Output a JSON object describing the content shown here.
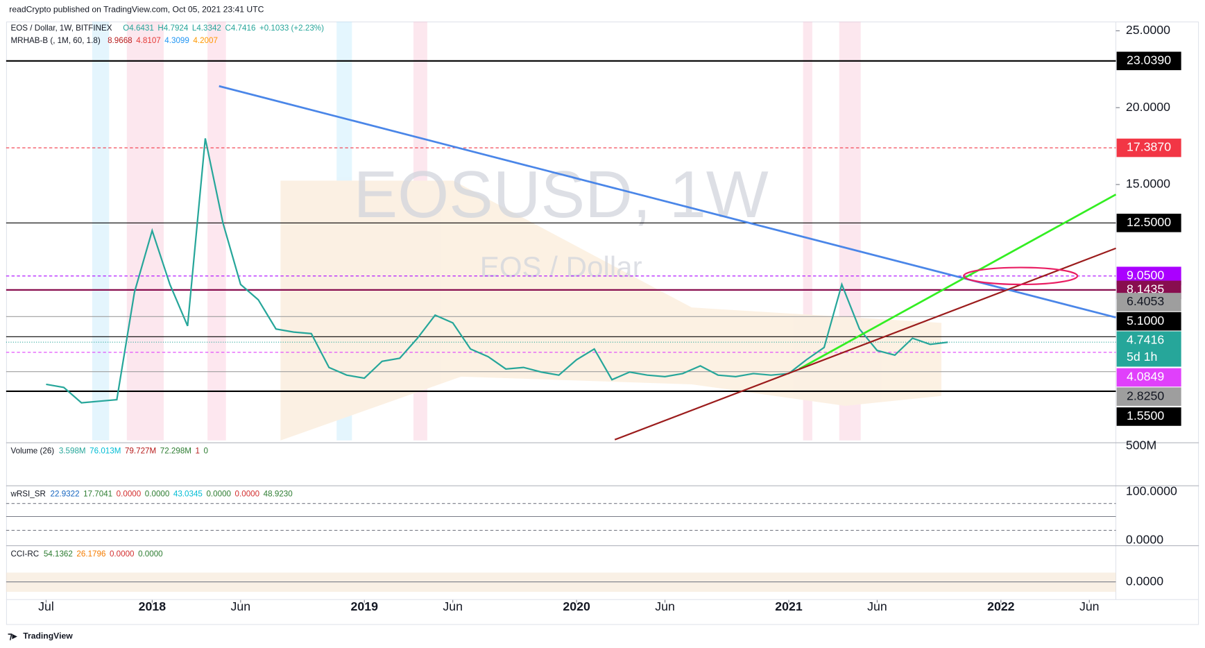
{
  "header": "readCrypto published on TradingView.com, Oct 05, 2021 23:41 UTC",
  "footer": "TradingView",
  "chart_data": {
    "type": "line",
    "title": "EOS / Dollar, 1W, BITFINEX",
    "legend_values": [
      "O4.6431",
      "H4.7924",
      "L4.3342",
      "C4.7416",
      "+0.1033 (+2.23%)"
    ],
    "watermark": "EOSUSD, 1W",
    "watermark_sub": "EOS / Dollar",
    "indicator": {
      "name": "MRHAB-B (, 1M, 60, 1.8)",
      "values": [
        "8.9668",
        "4.8107",
        "4.3099",
        "4.2007"
      ],
      "colors": [
        "#b71c1c",
        "#e53935",
        "#2196f3",
        "#ff9800"
      ]
    },
    "color": "#26a69a",
    "values": [
      2.0,
      1.8,
      0.8,
      0.9,
      1.0,
      8.0,
      12.0,
      8.5,
      5.8,
      18.0,
      12.5,
      8.5,
      7.5,
      5.6,
      5.4,
      5.3,
      3.1,
      2.6,
      2.4,
      3.5,
      3.7,
      5.0,
      6.5,
      6.0,
      4.3,
      3.8,
      3.0,
      3.1,
      2.8,
      2.6,
      3.6,
      4.3,
      2.3,
      2.8,
      2.6,
      2.5,
      2.7,
      3.2,
      2.6,
      2.5,
      2.7,
      2.6,
      2.7,
      3.6,
      4.4,
      8.5,
      5.6,
      4.2,
      3.9,
      5.0,
      4.6,
      4.74
    ],
    "xlim": [
      -2.26,
      60.5
    ],
    "xticks": [
      {
        "value": 0,
        "label": "Jul"
      },
      {
        "value": 6,
        "label": "2018"
      },
      {
        "value": 11,
        "label": "Jun"
      },
      {
        "value": 18,
        "label": "2019"
      },
      {
        "value": 23,
        "label": "Jun"
      },
      {
        "value": 30,
        "label": "2020"
      },
      {
        "value": 35,
        "label": "Jun"
      },
      {
        "value": 42,
        "label": "2021"
      },
      {
        "value": 47,
        "label": "Jun"
      },
      {
        "value": 54,
        "label": "2022"
      },
      {
        "value": 59,
        "label": "Jun"
      }
    ],
    "ylim": [
      -1.65,
      25.6
    ],
    "yticks": [
      {
        "value": 25,
        "label": "25.0000"
      },
      {
        "value": 20,
        "label": "20.0000"
      },
      {
        "value": 15,
        "label": "15.0000"
      }
    ],
    "levels": [
      {
        "value": 23.039,
        "label": "23.0390",
        "color": "#000000",
        "style": "solid"
      },
      {
        "value": 17.387,
        "label": "17.3870",
        "color": "#f23645",
        "style": "dashed"
      },
      {
        "value": 12.5,
        "label": "12.5000",
        "color": "#000000",
        "style": "solid"
      },
      {
        "value": 9.05,
        "label": "9.0500",
        "color": "#aa00ff",
        "style": "dashed"
      },
      {
        "value": 8.1435,
        "label": "8.1435",
        "color": "#880e4f",
        "style": "solid"
      },
      {
        "value": 6.4053,
        "label": "6.4053",
        "color": "#9e9e9e",
        "style": "solid"
      },
      {
        "value": 5.1,
        "label": "5.1000",
        "color": "#000000",
        "style": "solid"
      },
      {
        "value": 4.7416,
        "label": "4.7416",
        "sub": "5d 1h",
        "color": "#26a69a",
        "style": "dotted"
      },
      {
        "value": 4.0849,
        "label": "4.0849",
        "color": "#e040fb",
        "style": "dashed"
      },
      {
        "value": 2.825,
        "label": "2.8250",
        "color": "#9e9e9e",
        "style": "solid"
      },
      {
        "value": 1.55,
        "label": "1.5500",
        "color": "#000000",
        "style": "solid"
      }
    ],
    "panes": [
      {
        "title": "Volume (26)",
        "values": [
          "3.598M",
          "76.013M",
          "79.727M",
          "72.298M",
          "1",
          "0"
        ],
        "colors": [
          "#26a69a",
          "#00bcd4",
          "#b71c1c",
          "#2e7d32",
          "#b71c1c",
          "#2e7d32"
        ],
        "axis_labels": [
          "500M"
        ]
      },
      {
        "title": "wRSI_SR",
        "values": [
          "22.9322",
          "17.7041",
          "0.0000",
          "0.0000",
          "43.0345",
          "0.0000",
          "0.0000",
          "48.9230"
        ],
        "colors": [
          "#1565c0",
          "#2e7d32",
          "#d32f2f",
          "#2e7d32",
          "#00bcd4",
          "#2e7d32",
          "#d32f2f",
          "#2e7d32"
        ],
        "axis_labels": [
          "100.0000",
          "0.0000"
        ]
      },
      {
        "title": "CCI-RC",
        "values": [
          "54.1362",
          "26.1796",
          "0.0000",
          "0.0000"
        ],
        "colors": [
          "#2e7d32",
          "#f57c00",
          "#d32f2f",
          "#2e7d32"
        ],
        "axis_labels": [
          "0.0000"
        ]
      }
    ]
  }
}
